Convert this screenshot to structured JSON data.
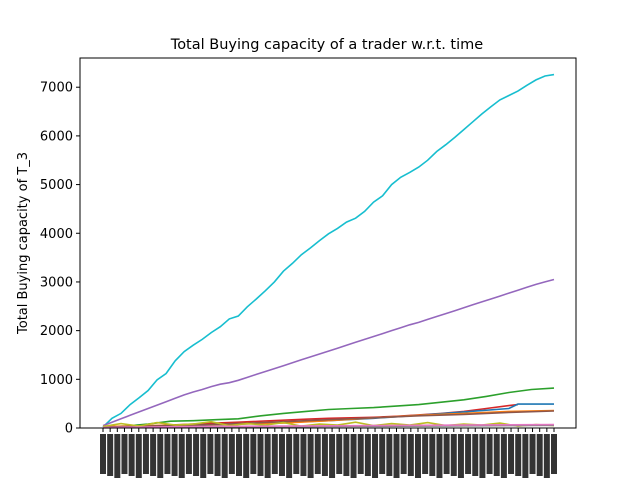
{
  "chart_data": {
    "type": "line",
    "title": "Total Buying capacity of a trader w.r.t. time",
    "xlabel": "",
    "ylabel": "Total Buying capacity of T_3",
    "ylim": [
      0,
      7600
    ],
    "xlim": [
      0,
      100
    ],
    "yticks": [
      0,
      1000,
      2000,
      3000,
      4000,
      5000,
      6000,
      7000
    ],
    "grid": false,
    "xtick_labels_note": "dense overlapping vertical time labels, unreadable",
    "series": [
      {
        "color": "#17becf",
        "x": [
          0,
          2,
          4,
          6,
          8,
          10,
          12,
          14,
          16,
          18,
          20,
          22,
          24,
          26,
          28,
          30,
          32,
          34,
          36,
          38,
          40,
          42,
          44,
          46,
          48,
          50,
          52,
          54,
          56,
          58,
          60,
          62,
          64,
          66,
          68,
          70,
          72,
          74,
          76,
          78,
          80,
          82,
          84,
          86,
          88,
          90,
          92,
          94,
          96,
          98,
          100
        ],
        "values": [
          20,
          200,
          300,
          480,
          620,
          770,
          990,
          1120,
          1380,
          1570,
          1700,
          1820,
          1960,
          2080,
          2240,
          2300,
          2490,
          2650,
          2820,
          3000,
          3220,
          3380,
          3560,
          3700,
          3850,
          3990,
          4100,
          4230,
          4310,
          4450,
          4640,
          4770,
          5000,
          5150,
          5250,
          5360,
          5500,
          5680,
          5820,
          5970,
          6130,
          6290,
          6450,
          6600,
          6740,
          6830,
          6920,
          7040,
          7150,
          7230,
          7260
        ]
      },
      {
        "color": "#9467bd",
        "x": [
          0,
          2,
          4,
          6,
          8,
          10,
          12,
          14,
          16,
          18,
          20,
          22,
          24,
          26,
          28,
          30,
          32,
          34,
          36,
          38,
          40,
          42,
          44,
          46,
          48,
          50,
          52,
          54,
          56,
          58,
          60,
          62,
          64,
          66,
          68,
          70,
          72,
          74,
          76,
          78,
          80,
          82,
          84,
          86,
          88,
          90,
          92,
          94,
          96,
          98,
          100
        ],
        "values": [
          50,
          120,
          190,
          260,
          330,
          400,
          470,
          540,
          610,
          680,
          740,
          790,
          850,
          900,
          930,
          980,
          1040,
          1100,
          1160,
          1220,
          1280,
          1340,
          1400,
          1460,
          1520,
          1580,
          1640,
          1700,
          1760,
          1820,
          1880,
          1940,
          2000,
          2060,
          2120,
          2170,
          2230,
          2290,
          2350,
          2410,
          2470,
          2530,
          2590,
          2650,
          2710,
          2770,
          2830,
          2890,
          2950,
          3000,
          3050
        ]
      },
      {
        "color": "#2ca02c",
        "x": [
          0,
          5,
          10,
          15,
          20,
          25,
          30,
          35,
          40,
          45,
          50,
          55,
          60,
          65,
          70,
          75,
          80,
          85,
          90,
          95,
          100
        ],
        "values": [
          20,
          40,
          80,
          140,
          150,
          170,
          190,
          250,
          300,
          340,
          380,
          400,
          420,
          450,
          480,
          530,
          580,
          650,
          730,
          790,
          820
        ]
      },
      {
        "color": "#d62728",
        "x": [
          0,
          5,
          10,
          15,
          20,
          25,
          30,
          35,
          40,
          45,
          50,
          55,
          60,
          65,
          70,
          75,
          80,
          85,
          90,
          92
        ],
        "values": [
          10,
          20,
          40,
          60,
          80,
          100,
          120,
          140,
          160,
          180,
          200,
          210,
          220,
          240,
          270,
          300,
          340,
          400,
          460,
          480
        ]
      },
      {
        "color": "#1f77b4",
        "x": [
          0,
          10,
          20,
          30,
          40,
          50,
          60,
          70,
          80,
          90,
          92,
          100
        ],
        "values": [
          10,
          25,
          50,
          80,
          110,
          150,
          200,
          260,
          330,
          400,
          490,
          490
        ]
      },
      {
        "color": "#ff7f0e",
        "x": [
          0,
          10,
          20,
          30,
          40,
          50,
          60,
          70,
          80,
          90,
          100
        ],
        "values": [
          30,
          50,
          60,
          80,
          100,
          150,
          210,
          260,
          300,
          340,
          360
        ]
      },
      {
        "color": "#8c564b",
        "x": [
          0,
          10,
          20,
          30,
          40,
          50,
          60,
          70,
          80,
          90,
          100
        ],
        "values": [
          20,
          40,
          60,
          90,
          130,
          170,
          210,
          250,
          280,
          320,
          350
        ]
      },
      {
        "color": "#bcbd22",
        "x": [
          0,
          4,
          8,
          12,
          16,
          20,
          24,
          28,
          32,
          36,
          40,
          44,
          48,
          52,
          56,
          60,
          64,
          68,
          72,
          76,
          80,
          84,
          88,
          92,
          96,
          100
        ],
        "values": [
          30,
          90,
          40,
          110,
          60,
          80,
          130,
          50,
          90,
          60,
          110,
          40,
          80,
          60,
          120,
          50,
          90,
          60,
          110,
          50,
          80,
          60,
          100,
          40,
          70,
          50
        ]
      },
      {
        "color": "#7f7f7f",
        "x": [
          0,
          10,
          20,
          30,
          40,
          50,
          60,
          70,
          80,
          90,
          100
        ],
        "values": [
          5,
          10,
          15,
          20,
          25,
          30,
          35,
          40,
          45,
          50,
          55
        ]
      },
      {
        "color": "#e377c2",
        "x": [
          0,
          10,
          20,
          30,
          40,
          50,
          60,
          70,
          80,
          90,
          100
        ],
        "values": [
          10,
          20,
          30,
          35,
          40,
          45,
          50,
          55,
          60,
          65,
          70
        ]
      }
    ]
  }
}
